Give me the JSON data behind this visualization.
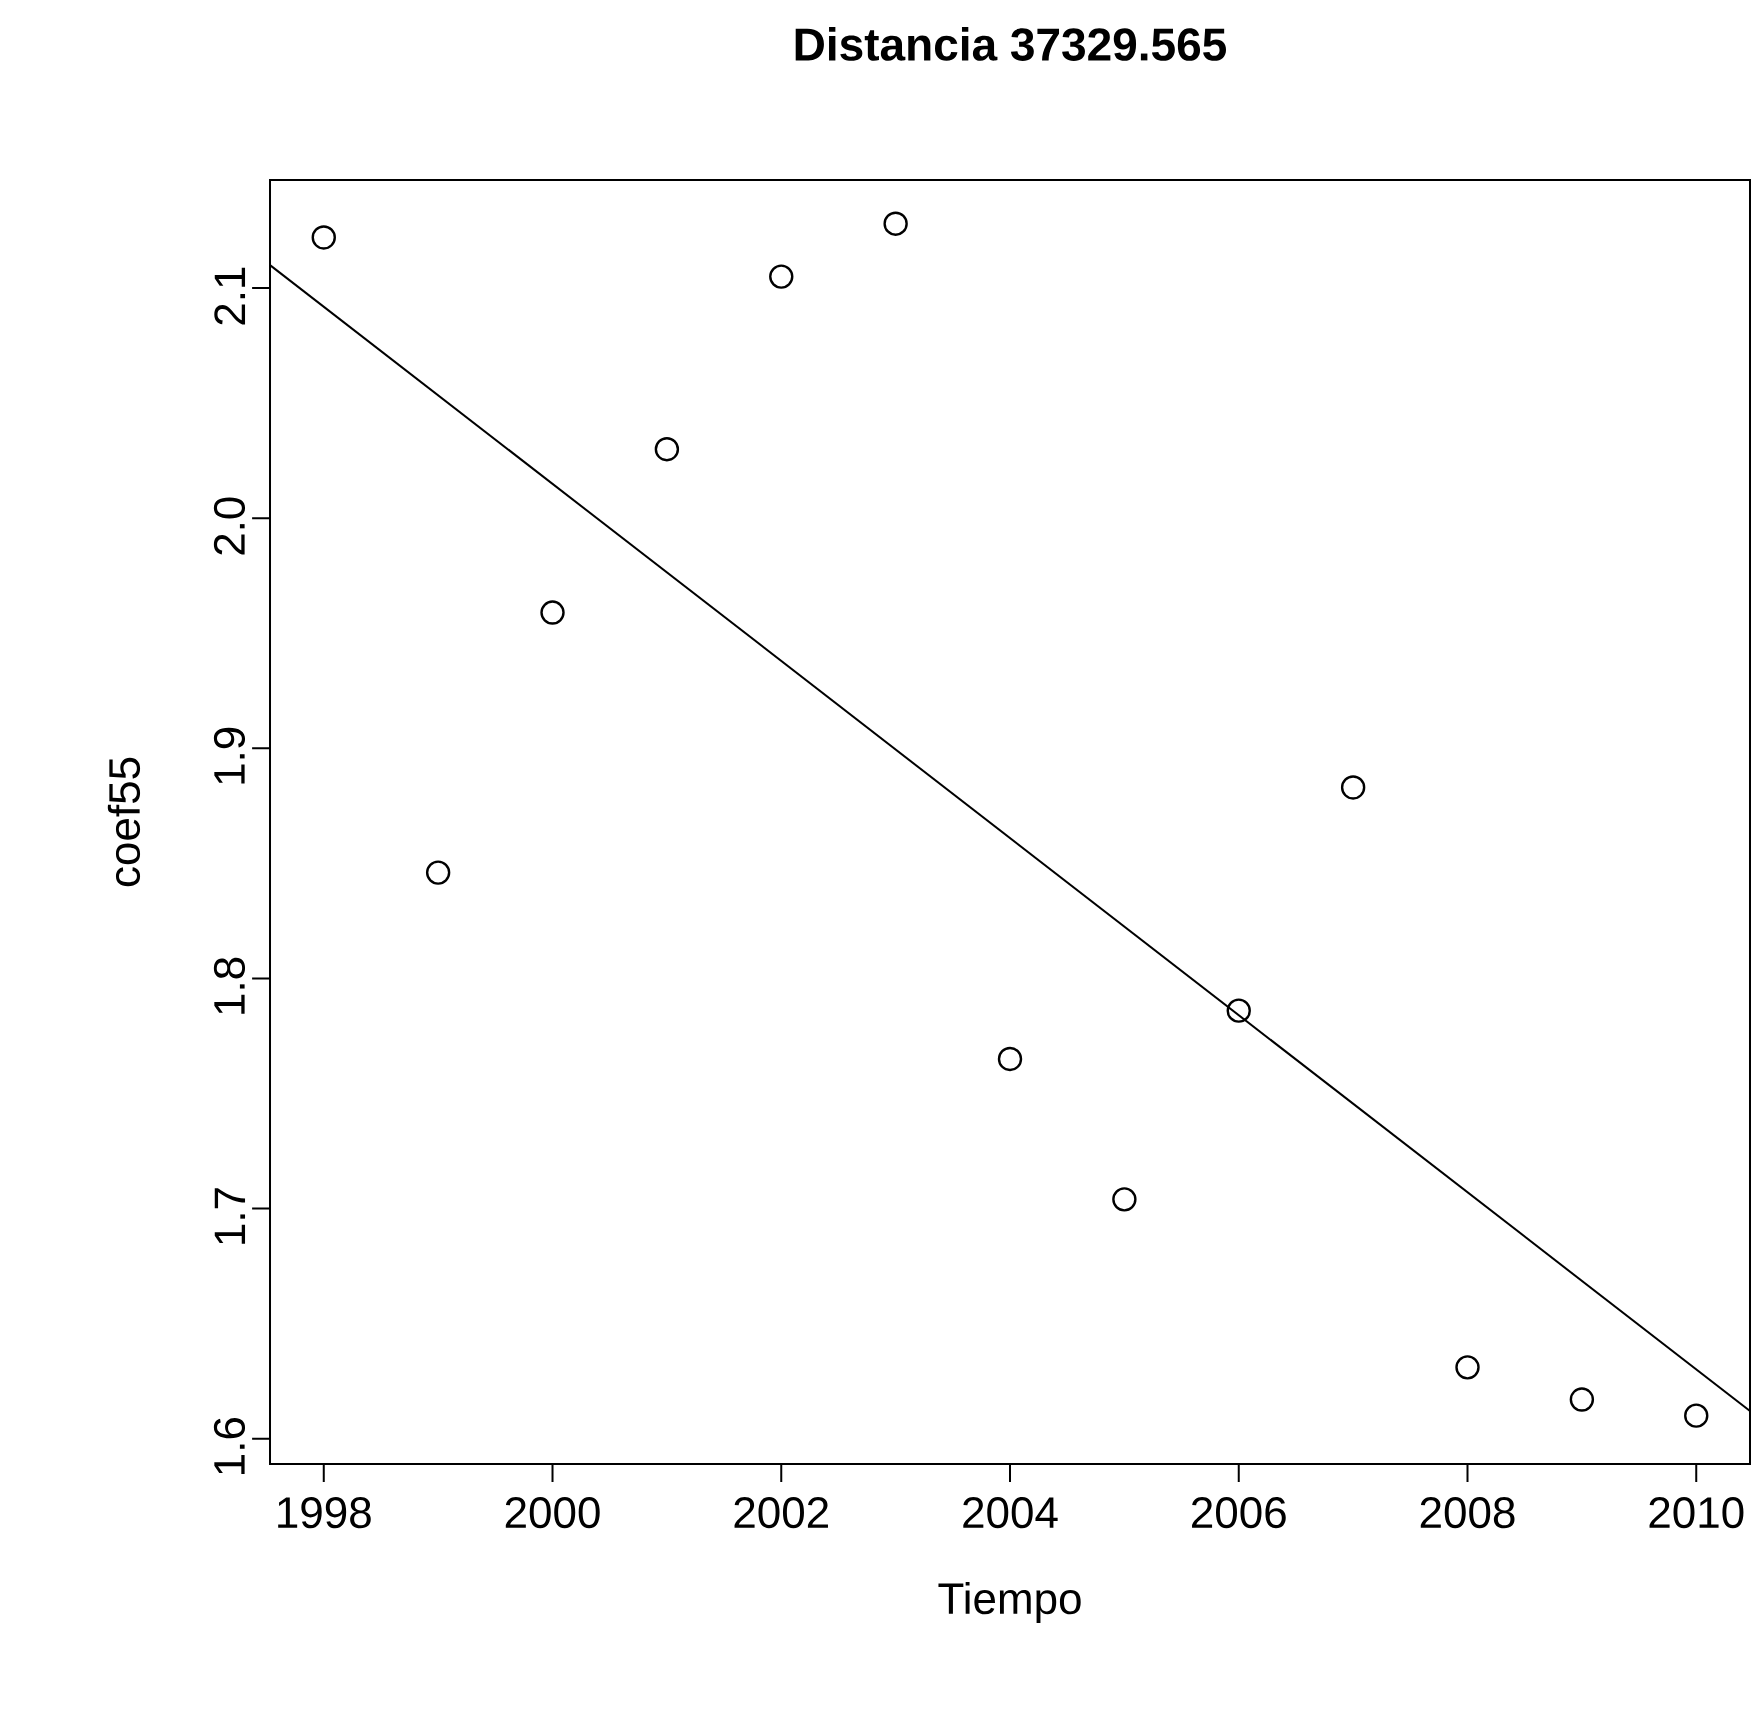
{
  "chart_data": {
    "type": "scatter",
    "title": "Distancia 37329.565",
    "xlabel": "Tiempo",
    "ylabel": "coef55",
    "xlim": [
      1997.53,
      2010.47
    ],
    "ylim": [
      1.589,
      2.147
    ],
    "xticks": [
      1998,
      2000,
      2002,
      2004,
      2006,
      2008,
      2010
    ],
    "yticks": [
      1.6,
      1.7,
      1.8,
      1.9,
      {
        "value": 2.0,
        "label": "2.0"
      },
      2.1
    ],
    "grid": false,
    "legend": false,
    "marker": "circle",
    "series": [
      {
        "color": "#000000",
        "x": [
          1998,
          1999,
          2000,
          2001,
          2002,
          2003,
          2004,
          2005,
          2006,
          2007,
          2008,
          2009,
          2010
        ],
        "values": [
          2.122,
          1.846,
          1.959,
          2.03,
          2.105,
          2.128,
          1.765,
          1.704,
          1.786,
          1.883,
          1.631,
          1.617,
          1.61
        ]
      },
      {
        "type": "line",
        "color": "#000000",
        "line_style": "solid",
        "marker": "none",
        "x": [
          1997.53,
          2010.47
        ],
        "values": [
          2.11,
          1.612
        ]
      }
    ]
  }
}
